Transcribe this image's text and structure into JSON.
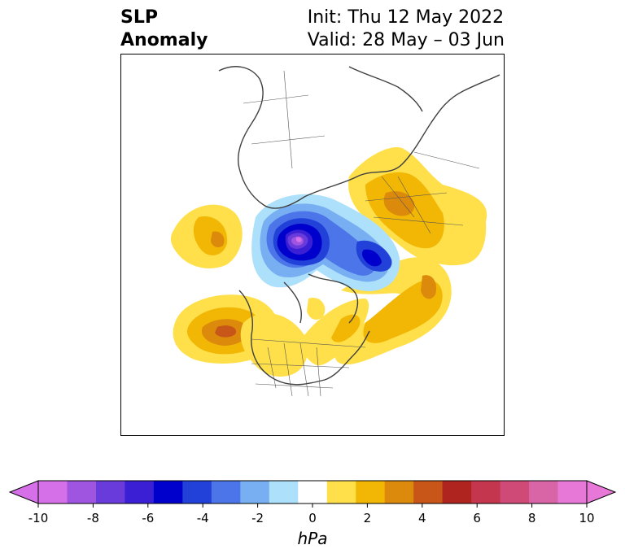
{
  "title": {
    "variable_line1": "SLP",
    "variable_line2": "Anomaly",
    "init": "Init: Thu 12 May 2022",
    "valid": "Valid: 28 May – 03 Jun"
  },
  "colorbar": {
    "label": "hPa",
    "ticks": [
      "-10",
      "-8",
      "-6",
      "-4",
      "-2",
      "0",
      "2",
      "4",
      "6",
      "8",
      "10"
    ],
    "levels": [
      -10,
      -9,
      -8,
      -7,
      -6,
      -5,
      -4,
      -3,
      -2,
      -1,
      1,
      2,
      3,
      4,
      5,
      6,
      7,
      8,
      9,
      10
    ],
    "colors": [
      "#d670e8",
      "#a055e0",
      "#6a3bdb",
      "#3a1fd4",
      "#0000cc",
      "#2241d9",
      "#4b75e8",
      "#78aff2",
      "#ade0fb",
      "#ffffff",
      "#ffe04a",
      "#f2b705",
      "#dc8a0c",
      "#c85618",
      "#b02420",
      "#c3364d",
      "#d04a77",
      "#d965a6",
      "#e878d8"
    ],
    "extend_low_color": "#d670e8",
    "extend_high_color": "#e878d8"
  }
}
